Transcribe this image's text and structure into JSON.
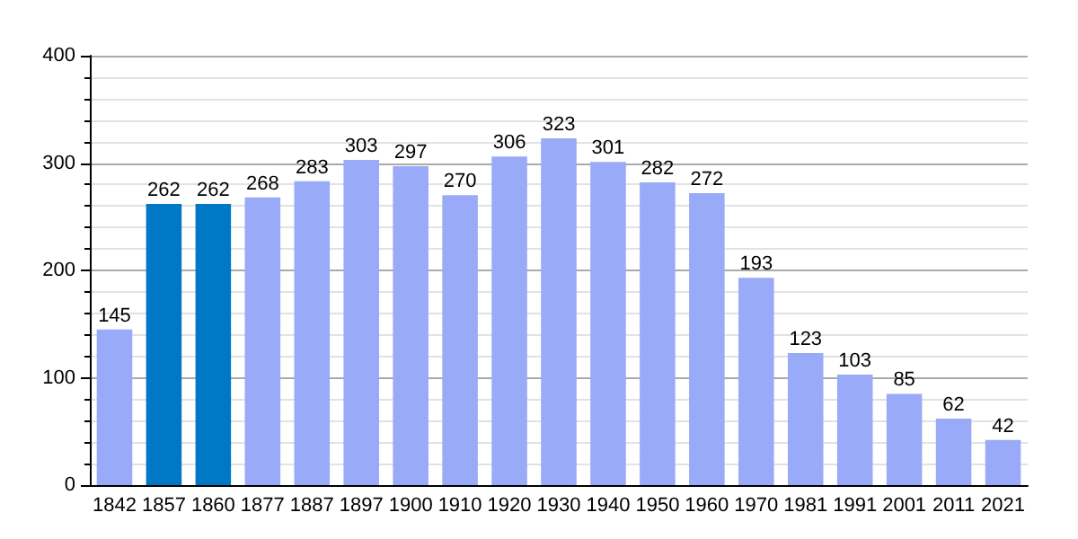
{
  "chart_data": {
    "type": "bar",
    "categories": [
      "1842",
      "1857",
      "1860",
      "1877",
      "1887",
      "1897",
      "1900",
      "1910",
      "1920",
      "1930",
      "1940",
      "1950",
      "1960",
      "1970",
      "1981",
      "1991",
      "2001",
      "2011",
      "2021"
    ],
    "values": [
      145,
      262,
      262,
      268,
      283,
      303,
      297,
      270,
      306,
      323,
      301,
      282,
      272,
      193,
      123,
      103,
      85,
      62,
      42
    ],
    "colors": [
      "#99aaf8",
      "#0078c6",
      "#0078c6",
      "#99aaf8",
      "#99aaf8",
      "#99aaf8",
      "#99aaf8",
      "#99aaf8",
      "#99aaf8",
      "#99aaf8",
      "#99aaf8",
      "#99aaf8",
      "#99aaf8",
      "#99aaf8",
      "#99aaf8",
      "#99aaf8",
      "#99aaf8",
      "#99aaf8",
      "#99aaf8"
    ],
    "ylim": [
      0,
      400
    ],
    "yticks": [
      0,
      100,
      200,
      300,
      400
    ],
    "grid": true,
    "data_labels": true
  }
}
